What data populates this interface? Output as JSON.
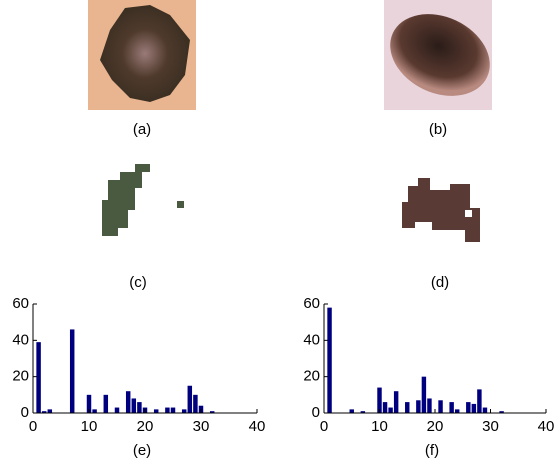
{
  "images": [
    {
      "caption": "(a)"
    },
    {
      "caption": "(b)"
    },
    {
      "caption": "(c)"
    },
    {
      "caption": "(d)"
    }
  ],
  "chart_data": [
    {
      "type": "bar",
      "caption": "(e)",
      "color": "#00007f",
      "x": [
        1,
        2,
        3,
        7,
        10,
        11,
        13,
        15,
        17,
        18,
        19,
        20,
        22,
        24,
        25,
        27,
        28,
        29,
        30,
        32
      ],
      "values": [
        39,
        1,
        2,
        46,
        10,
        2,
        10,
        3,
        12,
        8,
        6,
        3,
        2,
        3,
        3,
        2,
        15,
        10,
        4,
        1
      ],
      "xlim": [
        0,
        40
      ],
      "ylim": [
        0,
        60
      ],
      "xticks": [
        0,
        10,
        20,
        30,
        40
      ],
      "yticks": [
        0,
        20,
        40,
        60
      ]
    },
    {
      "type": "bar",
      "caption": "(f)",
      "color": "#00007f",
      "x": [
        1,
        5,
        7,
        10,
        11,
        12,
        13,
        15,
        17,
        18,
        19,
        21,
        23,
        24,
        26,
        27,
        28,
        29,
        32
      ],
      "values": [
        58,
        2,
        1,
        14,
        6,
        3,
        12,
        6,
        7,
        20,
        8,
        7,
        6,
        2,
        6,
        5,
        13,
        3,
        1
      ],
      "xlim": [
        0,
        40
      ],
      "ylim": [
        0,
        60
      ],
      "xticks": [
        0,
        10,
        20,
        30,
        40
      ],
      "yticks": [
        0,
        20,
        40,
        60
      ]
    }
  ]
}
